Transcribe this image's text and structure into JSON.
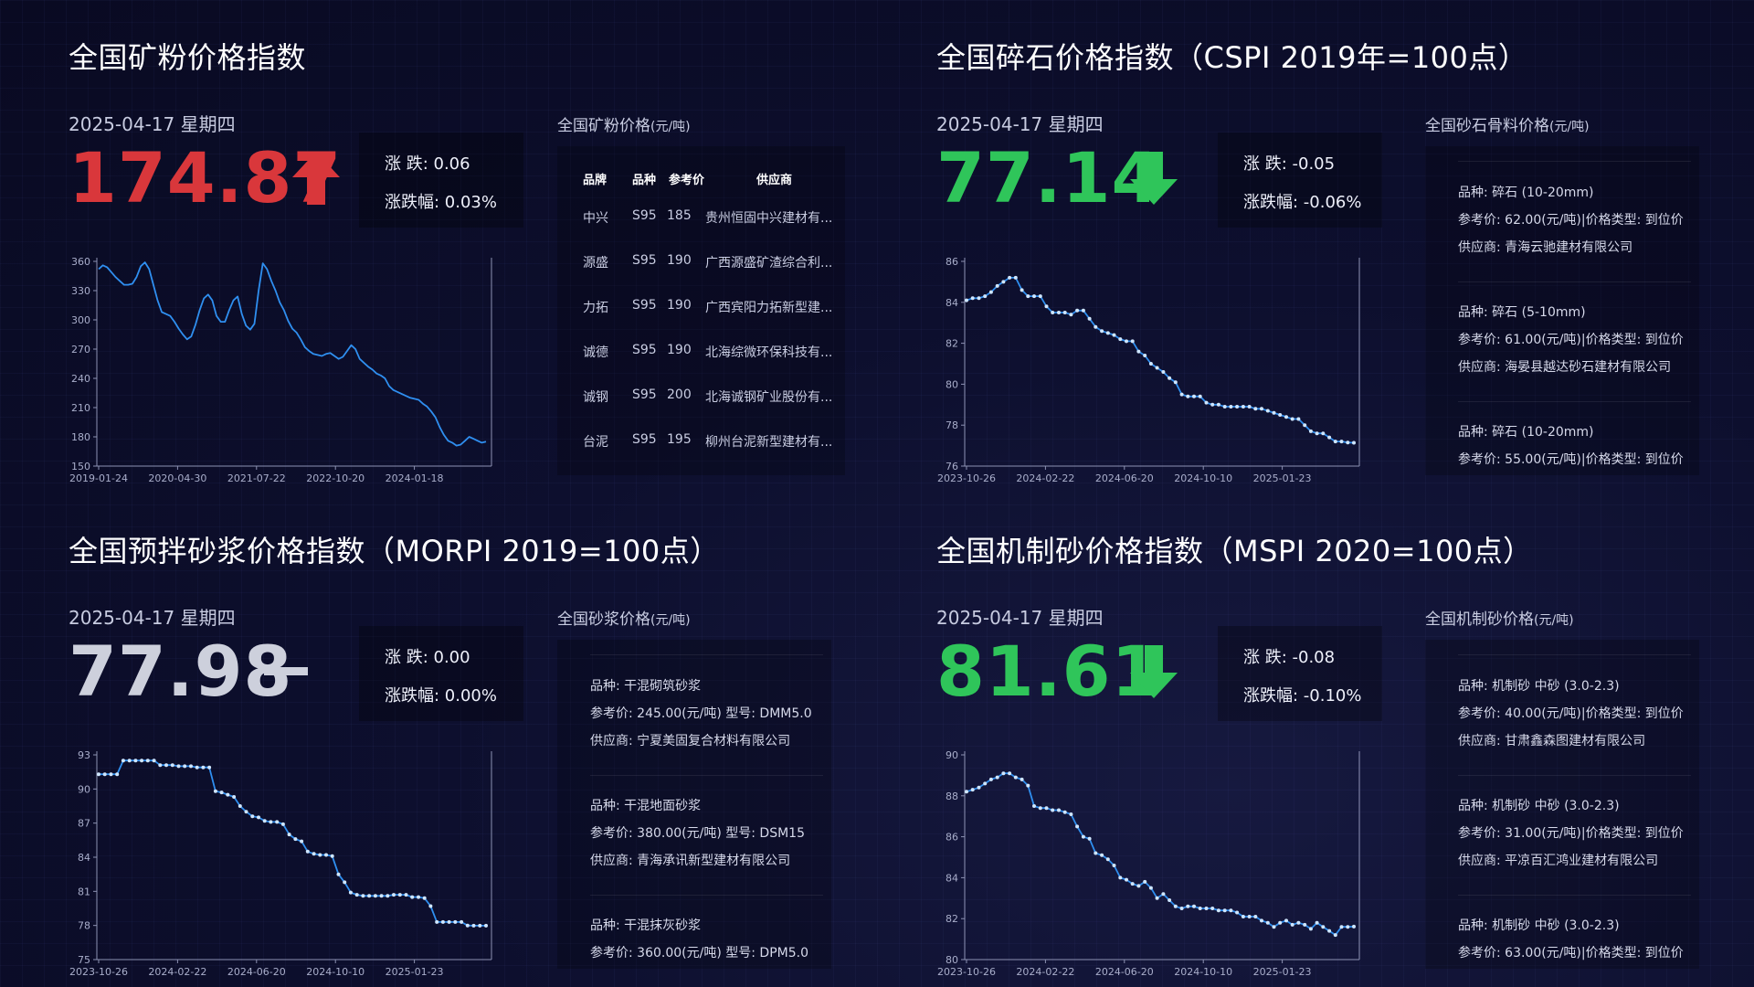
{
  "panels": [
    {
      "title": "全国矿粉价格指数",
      "date": "2025-04-17 星期四",
      "value": "174.87",
      "direction": "up",
      "change_label": "涨 跌: 0.06",
      "pct_label": "涨跌幅: 0.03%",
      "trend_icon": "arrow-up-icon",
      "price_title": "全国矿粉价格",
      "price_unit": "(元/吨)",
      "table": {
        "headers": [
          "品牌",
          "品种",
          "参考价",
          "供应商"
        ],
        "rows": [
          [
            "中兴",
            "S95",
            "185",
            "贵州恒固中兴建材有..."
          ],
          [
            "源盛",
            "S95",
            "190",
            "广西源盛矿渣综合利..."
          ],
          [
            "力拓",
            "S95",
            "190",
            "广西宾阳力拓新型建..."
          ],
          [
            "诚德",
            "S95",
            "190",
            "北海综微环保科技有..."
          ],
          [
            "诚钢",
            "S95",
            "200",
            "北海诚钢矿业股份有..."
          ],
          [
            "台泥",
            "S95",
            "195",
            "柳州台泥新型建材有..."
          ]
        ]
      }
    },
    {
      "title": "全国碎石价格指数（CSPI 2019年=100点）",
      "date": "2025-04-17 星期四",
      "value": "77.14",
      "direction": "down",
      "change_label": "涨 跌: -0.05",
      "pct_label": "涨跌幅: -0.06%",
      "trend_icon": "arrow-down-icon",
      "price_title": "全国砂石骨料价格",
      "price_unit": "(元/吨)",
      "items": [
        {
          "line1": "品种: 碎石 (10-20mm)",
          "line2": "参考价: 62.00(元/吨)|价格类型: 到位价",
          "line3": "供应商: 青海云驰建材有限公司"
        },
        {
          "line1": "品种: 碎石 (5-10mm)",
          "line2": "参考价: 61.00(元/吨)|价格类型: 到位价",
          "line3": "供应商: 海晏县越达砂石建材有限公司"
        },
        {
          "line1": "品种: 碎石 (10-20mm)",
          "line2": "参考价: 55.00(元/吨)|价格类型: 到位价",
          "line3": ""
        }
      ]
    },
    {
      "title": "全国预拌砂浆价格指数（MORPI 2019=100点）",
      "date": "2025-04-17 星期四",
      "value": "77.98",
      "direction": "flat",
      "change_label": "涨 跌: 0.00",
      "pct_label": "涨跌幅: 0.00%",
      "trend_icon": "dash-flat-icon",
      "price_title": "全国砂浆价格",
      "price_unit": "(元/吨)",
      "items": [
        {
          "line1": "品种: 干混砌筑砂浆",
          "line2": "参考价: 245.00(元/吨) 型号: DMM5.0",
          "line3": "供应商: 宁夏美固复合材料有限公司"
        },
        {
          "line1": "品种: 干混地面砂浆",
          "line2": "参考价: 380.00(元/吨) 型号: DSM15",
          "line3": "供应商: 青海承讯新型建材有限公司"
        },
        {
          "line1": "品种: 干混抹灰砂浆",
          "line2": "参考价: 360.00(元/吨) 型号: DPM5.0",
          "line3": ""
        }
      ]
    },
    {
      "title": "全国机制砂价格指数（MSPI 2020=100点）",
      "date": "2025-04-17 星期四",
      "value": "81.61",
      "direction": "down",
      "change_label": "涨 跌: -0.08",
      "pct_label": "涨跌幅: -0.10%",
      "trend_icon": "arrow-down-icon",
      "price_title": "全国机制砂价格",
      "price_unit": "(元/吨)",
      "items": [
        {
          "line1": "品种: 机制砂 中砂 (3.0-2.3)",
          "line2": "参考价: 40.00(元/吨)|价格类型: 到位价",
          "line3": "供应商: 甘肃鑫森图建材有限公司"
        },
        {
          "line1": "品种: 机制砂 中砂 (3.0-2.3)",
          "line2": "参考价: 31.00(元/吨)|价格类型: 到位价",
          "line3": "供应商: 平凉百汇鸿业建材有限公司"
        },
        {
          "line1": "品种: 机制砂 中砂 (3.0-2.3)",
          "line2": "参考价: 63.00(元/吨)|价格类型: 到位价",
          "line3": ""
        }
      ]
    }
  ],
  "chart_data": [
    {
      "type": "line",
      "color": "#2f8ff0",
      "markers": false,
      "ylim": [
        150,
        360
      ],
      "yticks": [
        150,
        180,
        210,
        240,
        270,
        300,
        330,
        360
      ],
      "xtick_labels": [
        "2019-01-24",
        "2020-04-30",
        "2021-07-22",
        "2022-10-20",
        "2024-01-18"
      ],
      "xtick_pos": [
        0,
        0.2,
        0.4,
        0.6,
        0.8
      ],
      "values": [
        352,
        356,
        354,
        349,
        344,
        340,
        336,
        336,
        337,
        344,
        355,
        359,
        352,
        336,
        320,
        308,
        306,
        304,
        298,
        291,
        285,
        280,
        283,
        295,
        310,
        322,
        326,
        320,
        304,
        298,
        298,
        310,
        320,
        324,
        306,
        294,
        290,
        296,
        330,
        358,
        352,
        340,
        330,
        318,
        310,
        299,
        291,
        287,
        280,
        272,
        268,
        265,
        264,
        263,
        265,
        266,
        263,
        260,
        262,
        268,
        274,
        270,
        260,
        256,
        252,
        249,
        245,
        243,
        240,
        232,
        228,
        226,
        224,
        222,
        220,
        219,
        218,
        214,
        211,
        206,
        200,
        190,
        182,
        176,
        174,
        171,
        172,
        176,
        180,
        178,
        176,
        174,
        175
      ]
    },
    {
      "type": "line",
      "color": "#2f8ff0",
      "markers": true,
      "ylim": [
        76,
        86
      ],
      "yticks": [
        76,
        78,
        80,
        82,
        84,
        86
      ],
      "xtick_labels": [
        "2023-10-26",
        "2024-02-22",
        "2024-06-20",
        "2024-10-10",
        "2025-01-23"
      ],
      "xtick_pos": [
        0,
        0.2,
        0.4,
        0.6,
        0.8
      ],
      "values": [
        84.1,
        84.2,
        84.2,
        84.3,
        84.5,
        84.8,
        85.0,
        85.2,
        85.2,
        84.6,
        84.3,
        84.3,
        84.3,
        83.8,
        83.5,
        83.5,
        83.5,
        83.4,
        83.6,
        83.6,
        83.2,
        82.8,
        82.6,
        82.5,
        82.4,
        82.2,
        82.1,
        82.1,
        81.6,
        81.4,
        81.0,
        80.8,
        80.6,
        80.3,
        80.1,
        79.5,
        79.4,
        79.4,
        79.4,
        79.1,
        79.0,
        79.0,
        78.9,
        78.9,
        78.9,
        78.9,
        78.9,
        78.8,
        78.8,
        78.7,
        78.6,
        78.5,
        78.4,
        78.3,
        78.3,
        78.0,
        77.7,
        77.6,
        77.6,
        77.4,
        77.2,
        77.2,
        77.15,
        77.14
      ]
    },
    {
      "type": "line",
      "color": "#2f8ff0",
      "markers": true,
      "ylim": [
        75,
        93
      ],
      "yticks": [
        75,
        78,
        81,
        84,
        87,
        90,
        93
      ],
      "xtick_labels": [
        "2023-10-26",
        "2024-02-22",
        "2024-06-20",
        "2024-10-10",
        "2025-01-23"
      ],
      "xtick_pos": [
        0,
        0.2,
        0.4,
        0.6,
        0.8
      ],
      "values": [
        91.3,
        91.3,
        91.3,
        91.3,
        92.5,
        92.5,
        92.5,
        92.5,
        92.5,
        92.5,
        92.1,
        92.1,
        92.1,
        92.0,
        92.0,
        92.0,
        91.9,
        91.9,
        91.9,
        89.8,
        89.7,
        89.5,
        89.3,
        88.5,
        88.0,
        87.6,
        87.5,
        87.2,
        87.1,
        87.1,
        86.9,
        86.0,
        85.6,
        85.4,
        84.5,
        84.3,
        84.2,
        84.2,
        84.1,
        82.5,
        81.8,
        80.9,
        80.7,
        80.6,
        80.6,
        80.6,
        80.6,
        80.6,
        80.7,
        80.7,
        80.7,
        80.5,
        80.5,
        80.4,
        79.7,
        78.3,
        78.3,
        78.3,
        78.3,
        78.3,
        78.0,
        77.98,
        77.98,
        77.98
      ]
    },
    {
      "type": "line",
      "color": "#2f8ff0",
      "markers": true,
      "ylim": [
        80,
        90
      ],
      "yticks": [
        80,
        82,
        84,
        86,
        88,
        90
      ],
      "xtick_labels": [
        "2023-10-26",
        "2024-02-22",
        "2024-06-20",
        "2024-10-10",
        "2025-01-23"
      ],
      "xtick_pos": [
        0,
        0.2,
        0.4,
        0.6,
        0.8
      ],
      "values": [
        88.2,
        88.3,
        88.4,
        88.6,
        88.8,
        88.9,
        89.1,
        89.1,
        88.9,
        88.8,
        88.5,
        87.5,
        87.4,
        87.4,
        87.3,
        87.3,
        87.2,
        87.1,
        86.5,
        86.0,
        85.9,
        85.2,
        85.1,
        84.9,
        84.6,
        84.0,
        83.9,
        83.7,
        83.6,
        83.8,
        83.5,
        83.0,
        83.2,
        82.9,
        82.6,
        82.5,
        82.6,
        82.6,
        82.5,
        82.5,
        82.5,
        82.4,
        82.4,
        82.4,
        82.3,
        82.1,
        82.1,
        82.1,
        81.9,
        81.8,
        81.6,
        81.8,
        81.9,
        81.7,
        81.8,
        81.7,
        81.5,
        81.8,
        81.6,
        81.4,
        81.2,
        81.6,
        81.6,
        81.61
      ]
    }
  ]
}
